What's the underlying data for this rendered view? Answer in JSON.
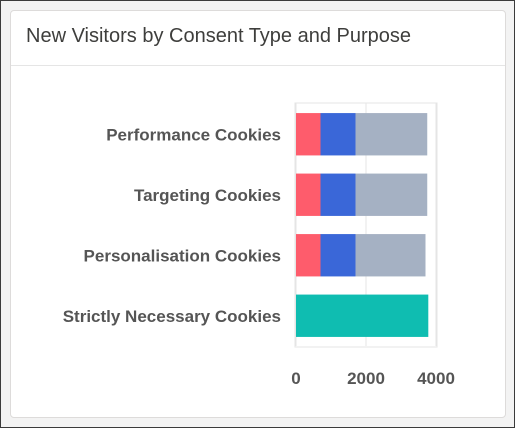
{
  "card": {
    "title": "New Visitors by Consent Type and Purpose"
  },
  "chart_data": {
    "type": "bar",
    "orientation": "horizontal",
    "stacked": true,
    "categories": [
      "Performance Cookies",
      "Targeting Cookies",
      "Personalisation Cookies",
      "Strictly Necessary Cookies"
    ],
    "series": [
      {
        "color": "#fe5c6c",
        "values": [
          700,
          700,
          700,
          0
        ]
      },
      {
        "color": "#3a67d8",
        "values": [
          1000,
          1000,
          1000,
          0
        ]
      },
      {
        "color": "#a5b1c3",
        "values": [
          2050,
          2050,
          2000,
          0
        ]
      },
      {
        "color": "#0fbdb1",
        "values": [
          0,
          0,
          0,
          3780
        ]
      }
    ],
    "xlim": [
      0,
      4000
    ],
    "x_ticks": [
      0,
      2000,
      4000
    ],
    "x_tick_labels": [
      "0",
      "2000",
      "4000"
    ],
    "grid": true,
    "legend": "none"
  }
}
